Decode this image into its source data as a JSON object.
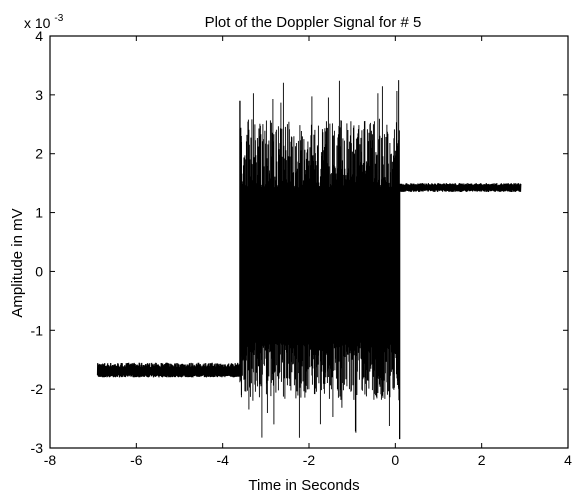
{
  "chart_data": {
    "type": "line",
    "title": "Plot of the Doppler Signal for # 5",
    "xlabel": "Time in Seconds",
    "ylabel": "Amplitude in mV",
    "y_exponent_label": "x 10",
    "y_exponent_power": "-3",
    "xlim": [
      -8,
      4
    ],
    "ylim": [
      -3,
      4
    ],
    "x_ticks": [
      -8,
      -6,
      -4,
      -2,
      0,
      2,
      4
    ],
    "x_tick_labels": [
      "-8",
      "-6",
      "-4",
      "-2",
      "0",
      "2",
      "4"
    ],
    "y_ticks": [
      -3,
      -2,
      -1,
      0,
      1,
      2,
      3,
      4
    ],
    "y_tick_labels": [
      "-3",
      "-2",
      "-1",
      "0",
      "1",
      "2",
      "3",
      "4"
    ],
    "grid": false,
    "line_color": "#000000",
    "segments": [
      {
        "x_start": -6.9,
        "x_end": -3.6,
        "level": -1.72,
        "noise_band": [
          -1.8,
          -1.55
        ]
      },
      {
        "x_start": -3.6,
        "x_end": 0.1,
        "level": 0.0,
        "noise_band": [
          -2.2,
          2.6
        ],
        "peak_max": 3.25,
        "peak_min": -2.85
      },
      {
        "x_start": 0.1,
        "x_end": 2.9,
        "level": 1.42,
        "noise_band": [
          1.35,
          1.5
        ]
      }
    ]
  }
}
